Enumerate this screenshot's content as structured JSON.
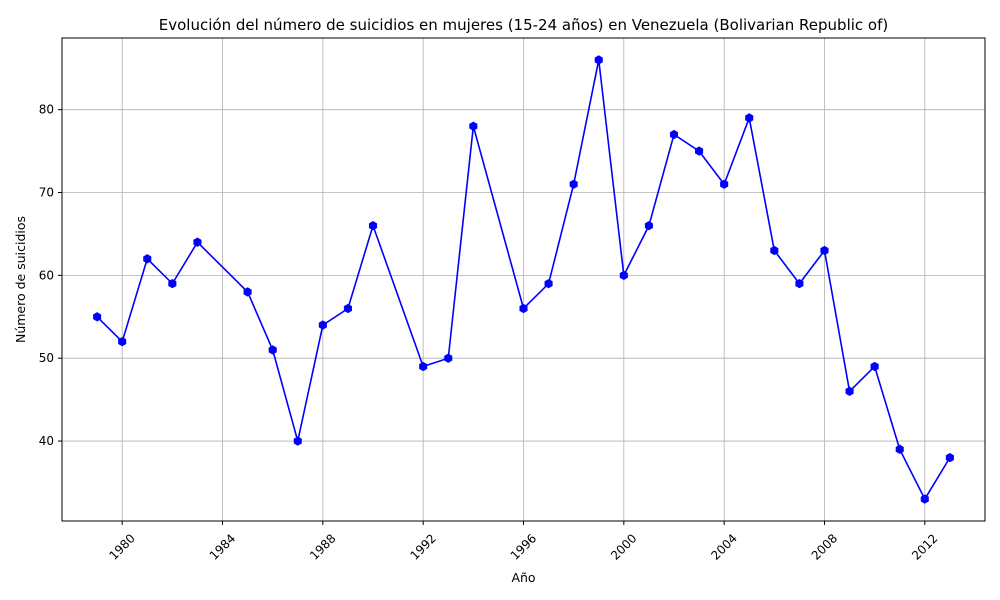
{
  "chart_data": {
    "type": "line",
    "title": "Evolución del número de suicidios en mujeres (15-24 años) en Venezuela (Bolivarian Republic of)",
    "xlabel": "Año",
    "ylabel": "Número de suicidios",
    "x": [
      1979,
      1980,
      1981,
      1982,
      1983,
      1985,
      1986,
      1987,
      1988,
      1989,
      1990,
      1992,
      1993,
      1994,
      1996,
      1997,
      1998,
      1999,
      2000,
      2001,
      2002,
      2003,
      2004,
      2005,
      2006,
      2007,
      2008,
      2009,
      2010,
      2011,
      2012,
      2013
    ],
    "series": [
      {
        "values": [
          55,
          52,
          62,
          59,
          64,
          58,
          51,
          40,
          54,
          56,
          66,
          49,
          50,
          78,
          56,
          59,
          71,
          86,
          60,
          66,
          77,
          75,
          71,
          79,
          63,
          59,
          63,
          46,
          49,
          39,
          33,
          38
        ]
      }
    ],
    "xlim": [
      1977.6,
      2014.4
    ],
    "ylim": [
      30.35,
      88.65
    ],
    "xticks": [
      "1980",
      "1984",
      "1988",
      "1992",
      "1996",
      "2000",
      "2004",
      "2008",
      "2012"
    ],
    "yticks": [
      "40",
      "50",
      "60",
      "70",
      "80"
    ],
    "grid": true,
    "legend": "none",
    "color": "#0000ff",
    "marker": "hexagon"
  }
}
